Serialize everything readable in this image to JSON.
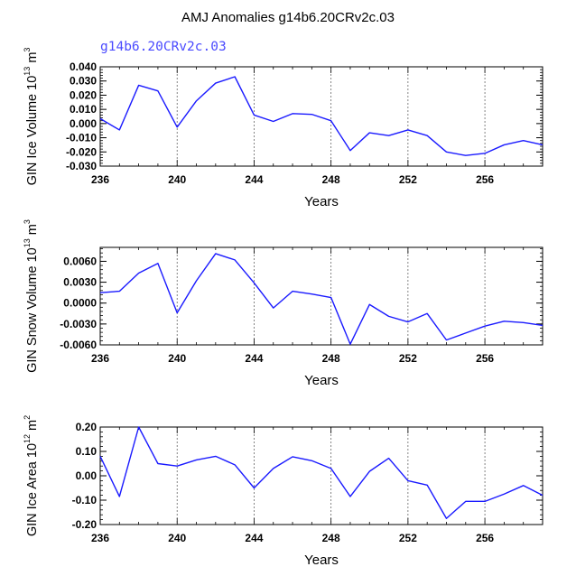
{
  "figure": {
    "title": "AMJ Anomalies g14b6.20CRv2c.03",
    "subtitle": "g14b6.20CRv2c.03",
    "line_color": "#1a1aff"
  },
  "chart_data": [
    {
      "type": "line",
      "ylabel_main": "GIN Ice Volume 10",
      "ylabel_exp": "13",
      "ylabel_unit": " m",
      "ylabel_unit_exp": "3",
      "xlabel": "Years",
      "xlim": [
        236,
        259
      ],
      "ylim": [
        -0.03,
        0.04
      ],
      "yticks": [
        -0.03,
        -0.02,
        -0.01,
        0.0,
        0.01,
        0.02,
        0.03,
        0.04
      ],
      "ytick_labels": [
        "-0.030",
        "-0.020",
        "-0.010",
        "0.000",
        "0.010",
        "0.020",
        "0.030",
        "0.040"
      ],
      "xticks": [
        236,
        240,
        244,
        248,
        252,
        256
      ],
      "xtick_labels": [
        "236",
        "240",
        "244",
        "248",
        "252",
        "256"
      ],
      "x": [
        236,
        237,
        238,
        239,
        240,
        241,
        242,
        243,
        244,
        245,
        246,
        247,
        248,
        249,
        250,
        251,
        252,
        253,
        254,
        255,
        256,
        257,
        258,
        259
      ],
      "y": [
        0.0035,
        -0.0045,
        0.027,
        0.023,
        -0.0025,
        0.016,
        0.0285,
        0.033,
        0.006,
        0.0015,
        0.007,
        0.0065,
        0.002,
        -0.019,
        -0.0065,
        -0.0085,
        -0.0045,
        -0.0085,
        -0.02,
        -0.0225,
        -0.021,
        -0.015,
        -0.012,
        -0.015
      ]
    },
    {
      "type": "line",
      "ylabel_main": "GIN Snow Volume 10",
      "ylabel_exp": "13",
      "ylabel_unit": " m",
      "ylabel_unit_exp": "3",
      "xlabel": "Years",
      "xlim": [
        236,
        259
      ],
      "ylim": [
        -0.006,
        0.008
      ],
      "yticks": [
        -0.006,
        -0.003,
        0.0,
        0.003,
        0.006
      ],
      "ytick_labels": [
        "-0.0060",
        "-0.0030",
        "0.0000",
        "0.0030",
        "0.0060"
      ],
      "xticks": [
        236,
        240,
        244,
        248,
        252,
        256
      ],
      "xtick_labels": [
        "236",
        "240",
        "244",
        "248",
        "252",
        "256"
      ],
      "x": [
        236,
        237,
        238,
        239,
        240,
        241,
        242,
        243,
        244,
        245,
        246,
        247,
        248,
        249,
        250,
        251,
        252,
        253,
        254,
        255,
        256,
        257,
        258,
        259
      ],
      "y": [
        0.0015,
        0.0017,
        0.0043,
        0.0057,
        -0.0014,
        0.0032,
        0.0071,
        0.0062,
        0.0029,
        -0.0007,
        0.0017,
        0.0013,
        0.0008,
        -0.0059,
        -0.0002,
        -0.0019,
        -0.0027,
        -0.0015,
        -0.0053,
        -0.0043,
        -0.0033,
        -0.0026,
        -0.0028,
        -0.0032
      ]
    },
    {
      "type": "line",
      "ylabel_main": "GIN Ice Area 10",
      "ylabel_exp": "12",
      "ylabel_unit": " m",
      "ylabel_unit_exp": "2",
      "xlabel": "Years",
      "xlim": [
        236,
        259
      ],
      "ylim": [
        -0.2,
        0.2
      ],
      "yticks": [
        -0.2,
        -0.1,
        0.0,
        0.1,
        0.2
      ],
      "ytick_labels": [
        "-0.20",
        "-0.10",
        "0.00",
        "0.10",
        "0.20"
      ],
      "xticks": [
        236,
        240,
        244,
        248,
        252,
        256
      ],
      "xtick_labels": [
        "236",
        "240",
        "244",
        "248",
        "252",
        "256"
      ],
      "x": [
        236,
        237,
        238,
        239,
        240,
        241,
        242,
        243,
        244,
        245,
        246,
        247,
        248,
        249,
        250,
        251,
        252,
        253,
        254,
        255,
        256,
        257,
        258,
        259
      ],
      "y": [
        0.08,
        -0.085,
        0.2,
        0.05,
        0.04,
        0.065,
        0.08,
        0.045,
        -0.05,
        0.03,
        0.078,
        0.062,
        0.03,
        -0.085,
        0.018,
        0.072,
        -0.02,
        -0.038,
        -0.175,
        -0.105,
        -0.105,
        -0.075,
        -0.04,
        -0.08
      ]
    }
  ]
}
